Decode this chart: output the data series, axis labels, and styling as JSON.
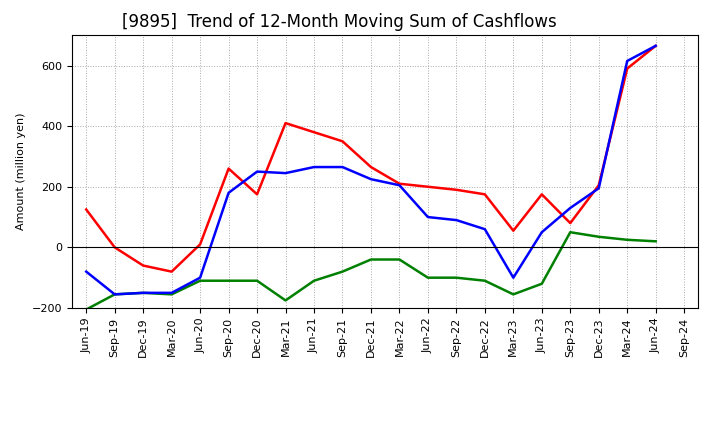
{
  "title": "[9895]  Trend of 12-Month Moving Sum of Cashflows",
  "ylabel": "Amount (million yen)",
  "ylim": [
    -200,
    700
  ],
  "yticks": [
    -200,
    0,
    200,
    400,
    600
  ],
  "x_labels": [
    "Jun-19",
    "Sep-19",
    "Dec-19",
    "Mar-20",
    "Jun-20",
    "Sep-20",
    "Dec-20",
    "Mar-21",
    "Jun-21",
    "Sep-21",
    "Dec-21",
    "Mar-22",
    "Jun-22",
    "Sep-22",
    "Dec-22",
    "Mar-23",
    "Jun-23",
    "Sep-23",
    "Dec-23",
    "Mar-24",
    "Jun-24",
    "Sep-24"
  ],
  "operating": [
    125,
    0,
    -60,
    -80,
    10,
    260,
    175,
    410,
    380,
    350,
    265,
    210,
    200,
    190,
    175,
    55,
    175,
    80,
    205,
    590,
    665,
    null
  ],
  "investing": [
    -205,
    -155,
    -150,
    -155,
    -110,
    -110,
    -110,
    -175,
    -110,
    -80,
    -40,
    -40,
    -100,
    -100,
    -110,
    -155,
    -120,
    50,
    35,
    25,
    20,
    null
  ],
  "free": [
    -80,
    -155,
    -150,
    -150,
    -100,
    180,
    250,
    245,
    265,
    265,
    225,
    205,
    100,
    90,
    60,
    -100,
    50,
    130,
    195,
    615,
    665,
    null
  ],
  "operating_color": "#ff0000",
  "investing_color": "#008000",
  "free_color": "#0000ff",
  "background_color": "#ffffff",
  "grid_color": "#aaaaaa",
  "title_fontsize": 12,
  "axis_fontsize": 8,
  "legend_fontsize": 9
}
